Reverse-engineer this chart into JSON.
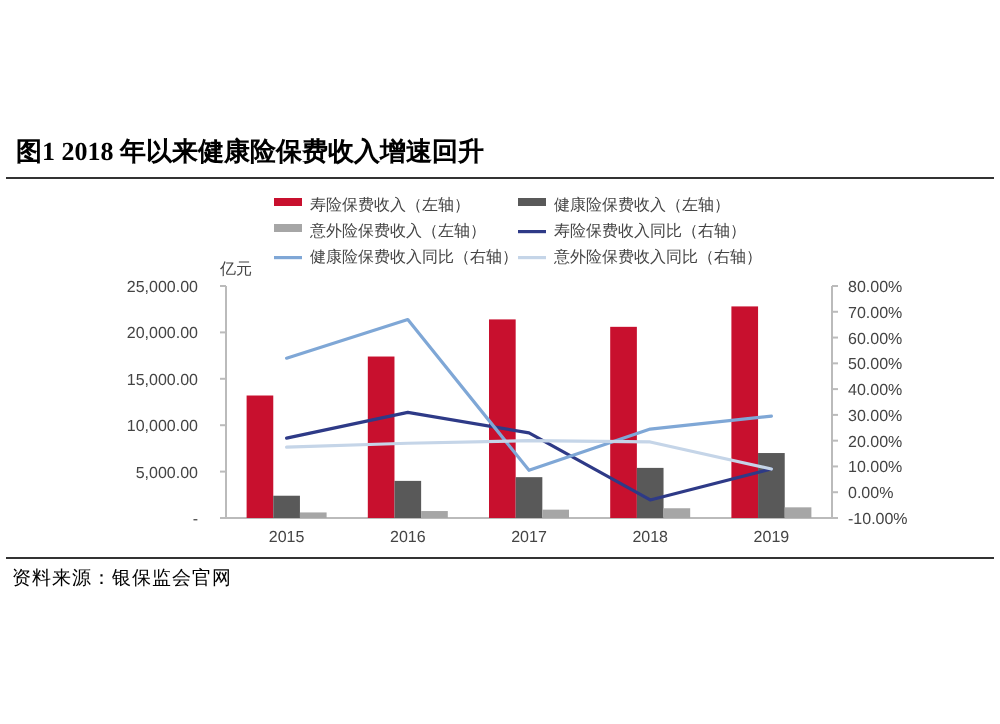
{
  "chart_data": {
    "type": "bar",
    "title": "图1   2018 年以来健康险保费收入增速回升",
    "ylabel": "亿元",
    "categories": [
      "2015",
      "2016",
      "2017",
      "2018",
      "2019"
    ],
    "series": [
      {
        "name": "寿险保费收入（左轴）",
        "color": "#c8102e",
        "values": [
          13200,
          17400,
          21400,
          20600,
          22800
        ]
      },
      {
        "name": "健康险保费收入（左轴）",
        "color": "#595959",
        "values": [
          2400,
          4000,
          4400,
          5400,
          7000
        ]
      },
      {
        "name": "意外险保费收入（左轴）",
        "color": "#a6a6a6",
        "values": [
          600,
          750,
          900,
          1050,
          1150
        ]
      },
      {
        "name": "寿险保费收入同比（右轴）",
        "color": "#2e3a87",
        "type": "line",
        "axis": "y2",
        "values": [
          21,
          31,
          23,
          -3,
          9
        ]
      },
      {
        "name": "健康险保费收入同比（右轴）",
        "color": "#7fa7d6",
        "type": "line",
        "axis": "y2",
        "values": [
          52,
          67,
          8.5,
          24.5,
          29.5
        ]
      },
      {
        "name": "意外险保费收入同比（右轴）",
        "color": "#c5d5e8",
        "type": "line",
        "axis": "y2",
        "values": [
          17.5,
          19,
          20,
          19.5,
          9
        ]
      }
    ],
    "ylim": [
      0,
      25000
    ],
    "yticks": [
      {
        "value": 0,
        "label": "-"
      },
      {
        "value": 5000,
        "label": "5,000.00"
      },
      {
        "value": 10000,
        "label": "10,000.00"
      },
      {
        "value": 15000,
        "label": "15,000.00"
      },
      {
        "value": 20000,
        "label": "20,000.00"
      },
      {
        "value": 25000,
        "label": "25,000.00"
      }
    ],
    "y2lim": [
      -10,
      80
    ],
    "y2ticks": [
      {
        "value": -10,
        "label": "-10.00%"
      },
      {
        "value": 0,
        "label": "0.00%"
      },
      {
        "value": 10,
        "label": "10.00%"
      },
      {
        "value": 20,
        "label": "20.00%"
      },
      {
        "value": 30,
        "label": "30.00%"
      },
      {
        "value": 40,
        "label": "40.00%"
      },
      {
        "value": 50,
        "label": "50.00%"
      },
      {
        "value": 60,
        "label": "60.00%"
      },
      {
        "value": 70,
        "label": "70.00%"
      },
      {
        "value": 80,
        "label": "80.00%"
      }
    ],
    "legend": "top",
    "grid": false,
    "annotations": [
      "资料来源：银保监会官网"
    ]
  }
}
